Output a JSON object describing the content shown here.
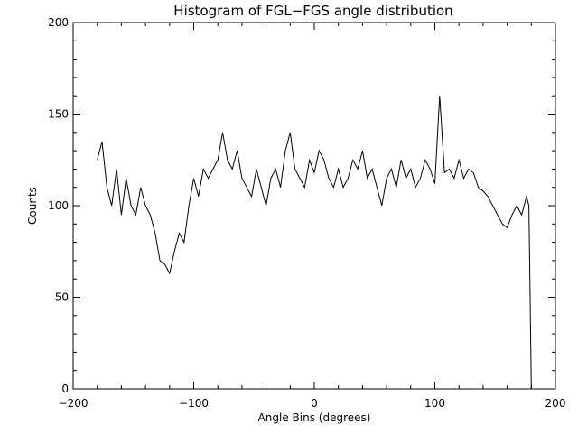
{
  "chart_data": {
    "type": "line",
    "title": "Histogram of FGL−FGS angle distribution",
    "xlabel": "Angle Bins (degrees)",
    "ylabel": "Counts",
    "xlim": [
      -200,
      200
    ],
    "ylim": [
      0,
      200
    ],
    "x_ticks": [
      -200,
      -100,
      0,
      100,
      200
    ],
    "x_tick_labels": [
      "−200",
      "−100",
      "0",
      "100",
      "200"
    ],
    "y_ticks": [
      0,
      50,
      100,
      150,
      200
    ],
    "y_tick_labels": [
      "0",
      "50",
      "100",
      "150",
      "200"
    ],
    "grid": false,
    "line_color": "#000000",
    "series": [
      {
        "name": "counts",
        "x": [
          -180,
          -176,
          -172,
          -168,
          -164,
          -160,
          -156,
          -152,
          -148,
          -144,
          -140,
          -136,
          -132,
          -128,
          -124,
          -120,
          -116,
          -112,
          -108,
          -104,
          -100,
          -96,
          -92,
          -88,
          -84,
          -80,
          -76,
          -72,
          -68,
          -64,
          -60,
          -56,
          -52,
          -48,
          -44,
          -40,
          -36,
          -32,
          -28,
          -24,
          -20,
          -16,
          -12,
          -8,
          -4,
          0,
          4,
          8,
          12,
          16,
          20,
          24,
          28,
          32,
          36,
          40,
          44,
          48,
          52,
          56,
          60,
          64,
          68,
          72,
          76,
          80,
          84,
          88,
          92,
          96,
          100,
          104,
          108,
          112,
          116,
          120,
          124,
          128,
          132,
          136,
          140,
          144,
          148,
          152,
          156,
          160,
          164,
          168,
          172,
          176,
          178,
          179,
          180
        ],
        "values": [
          125,
          135,
          110,
          100,
          120,
          95,
          115,
          100,
          95,
          110,
          100,
          95,
          85,
          70,
          68,
          63,
          75,
          85,
          80,
          100,
          115,
          105,
          120,
          115,
          120,
          125,
          140,
          125,
          120,
          130,
          115,
          110,
          105,
          120,
          110,
          100,
          115,
          120,
          110,
          130,
          140,
          120,
          115,
          110,
          125,
          118,
          130,
          125,
          115,
          110,
          120,
          110,
          115,
          125,
          120,
          130,
          115,
          120,
          110,
          100,
          115,
          120,
          110,
          125,
          115,
          120,
          110,
          115,
          125,
          120,
          112,
          160,
          118,
          120,
          115,
          125,
          115,
          120,
          118,
          110,
          108,
          105,
          100,
          95,
          90,
          88,
          95,
          100,
          95,
          105,
          100,
          50,
          0
        ]
      }
    ]
  }
}
